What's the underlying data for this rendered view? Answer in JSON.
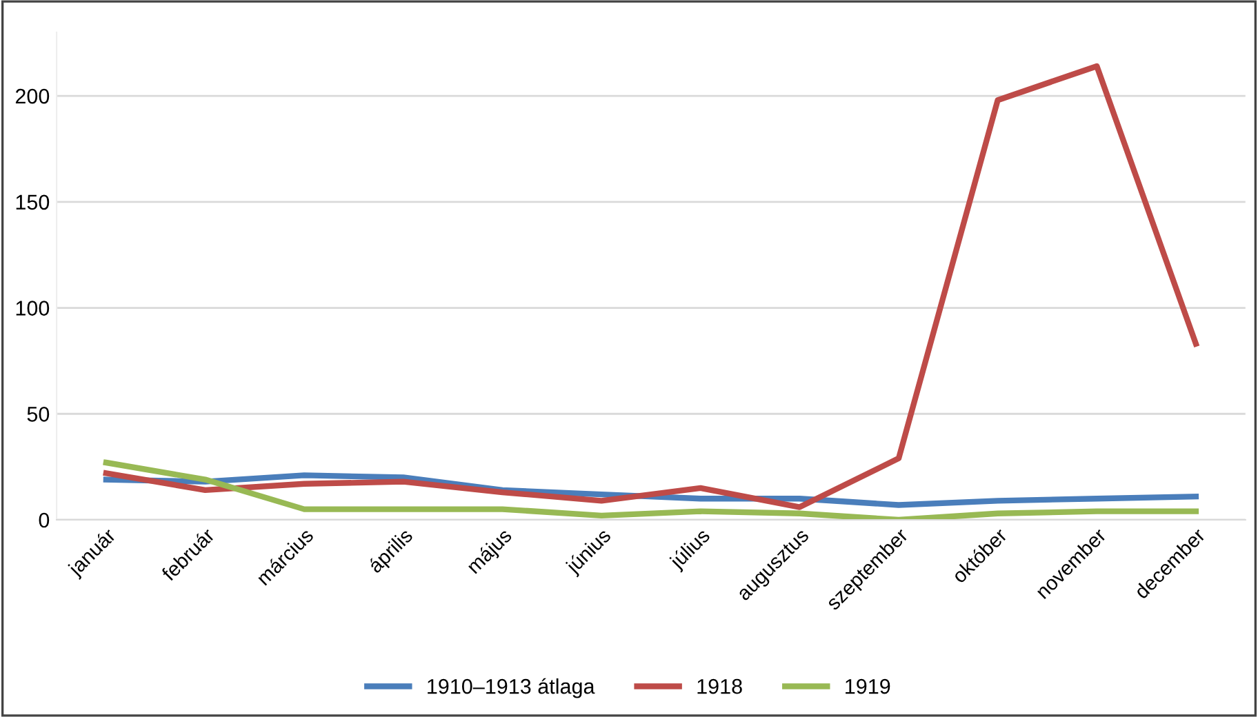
{
  "chart_data": {
    "type": "line",
    "categories": [
      "január",
      "február",
      "március",
      "április",
      "május",
      "június",
      "július",
      "augusztus",
      "szeptember",
      "október",
      "november",
      "december"
    ],
    "series": [
      {
        "name": "1910–1913 átlaga",
        "color": "#4a7ebb",
        "values": [
          19,
          18,
          21,
          20,
          14,
          12,
          10,
          10,
          7,
          9,
          10,
          11
        ]
      },
      {
        "name": "1918",
        "color": "#be4b48",
        "values": [
          22,
          14,
          17,
          18,
          13,
          9,
          15,
          6,
          29,
          198,
          214,
          83
        ]
      },
      {
        "name": "1919",
        "color": "#98b954",
        "values": [
          27,
          19,
          5,
          5,
          5,
          2,
          4,
          3,
          0,
          3,
          4,
          4
        ]
      }
    ],
    "ylim": [
      0,
      230
    ],
    "yticks": [
      0,
      50,
      100,
      150,
      200
    ],
    "grid": "y",
    "legend": "bottom",
    "marker": "none",
    "line_style": "solid"
  }
}
